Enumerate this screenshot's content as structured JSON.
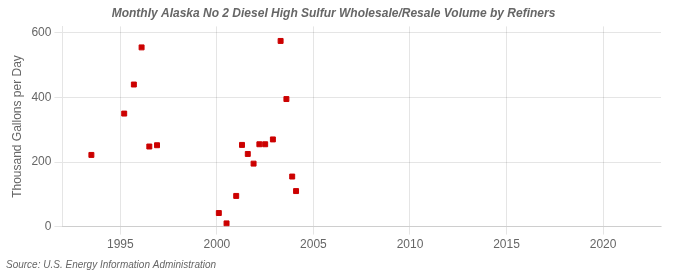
{
  "chart_data": {
    "type": "scatter",
    "title": "Monthly Alaska No 2 Diesel High Sulfur Wholesale/Resale Volume by Refiners",
    "ylabel": "Thousand Gallons per Day",
    "source": "Source: U.S. Energy Information Administration",
    "x": [
      1993.5,
      1995.2,
      1995.7,
      1996.1,
      1996.5,
      1996.9,
      2000.1,
      2000.5,
      2001.0,
      2001.3,
      2001.6,
      2001.9,
      2002.2,
      2002.5,
      2002.9,
      2003.3,
      2003.6,
      2003.9,
      2004.1
    ],
    "values": [
      222,
      350,
      440,
      555,
      248,
      252,
      42,
      10,
      95,
      253,
      225,
      195,
      255,
      255,
      270,
      575,
      395,
      155,
      110
    ],
    "color": "#cc0000",
    "marker": "square",
    "xlim": [
      1992,
      2023
    ],
    "ylim": [
      0,
      620
    ],
    "xticks": [
      1995,
      2000,
      2005,
      2010,
      2015,
      2020
    ],
    "yticks": [
      0,
      200,
      400,
      600
    ],
    "grid": true
  }
}
